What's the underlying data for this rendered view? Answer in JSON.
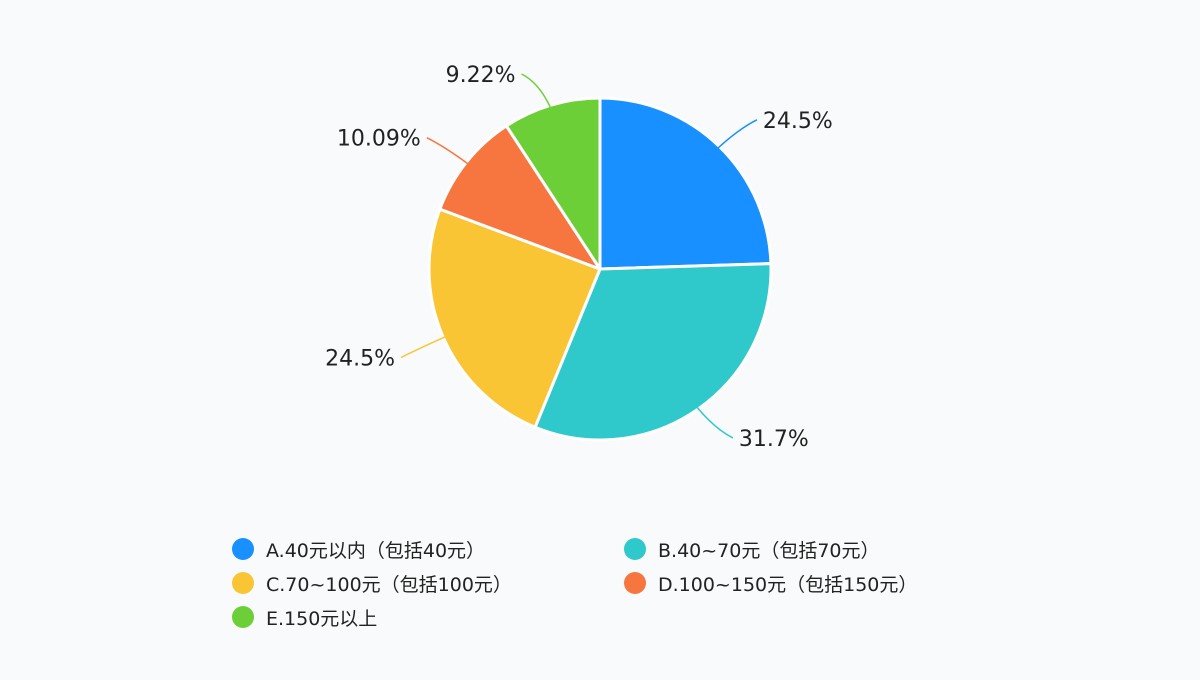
{
  "chart_data": {
    "type": "pie",
    "title": "",
    "slices": [
      {
        "name": "A.40元以内（包括40元）",
        "value": 24.5,
        "label": "24.5%",
        "color": "#1890ff"
      },
      {
        "name": "B.40~70元（包括70元）",
        "value": 31.7,
        "label": "31.7%",
        "color": "#2fc9cc"
      },
      {
        "name": "C.70~100元（包括100元）",
        "value": 24.5,
        "label": "24.5%",
        "color": "#fac535"
      },
      {
        "name": "D.100~150元（包括150元）",
        "value": 10.09,
        "label": "10.09%",
        "color": "#f7763f"
      },
      {
        "name": "E.150元以上",
        "value": 9.22,
        "label": "9.22%",
        "color": "#6ccf37"
      }
    ],
    "start_angle_deg": 0,
    "direction": "clockwise",
    "legend_position": "bottom"
  }
}
